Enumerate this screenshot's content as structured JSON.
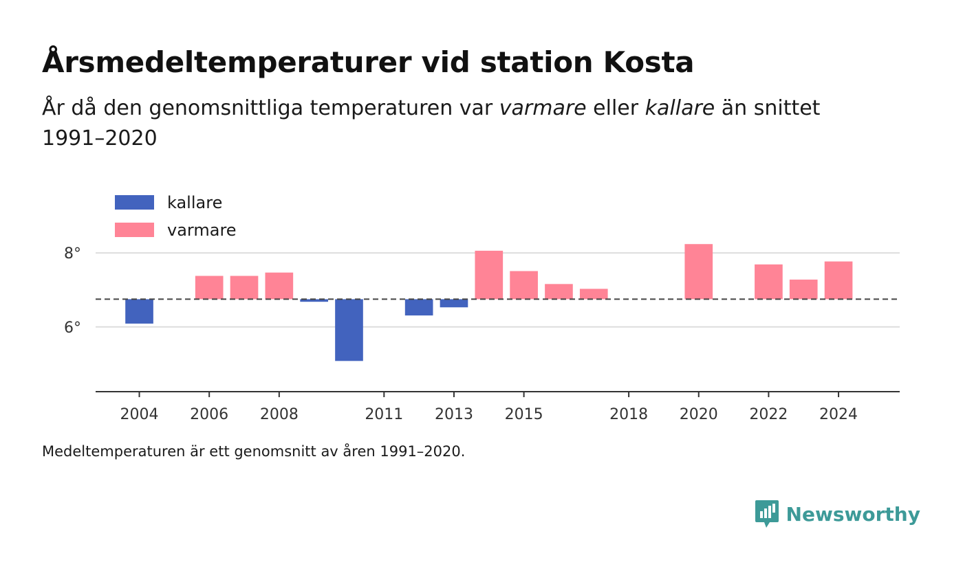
{
  "header": {
    "title": "Årsmedeltemperaturer vid station Kosta",
    "subtitle_part1": "År då den genomsnittliga temperaturen var ",
    "subtitle_em1": "varmare",
    "subtitle_part2": " eller ",
    "subtitle_em2": "kallare",
    "subtitle_part3": " än snittet 1991–2020"
  },
  "footnote": "Medeltemperaturen är ett genomsnitt av åren 1991–2020.",
  "brand": {
    "name": "Newsworthy",
    "icon": "newsworthy-logo-icon",
    "color": "#3d9a98"
  },
  "chart_data": {
    "type": "bar",
    "baseline": 6.75,
    "ylim": [
      4.25,
      9.6
    ],
    "xlim": [
      2002.75,
      2025.75
    ],
    "yticks": [
      {
        "value": 6,
        "label": "6°"
      },
      {
        "value": 8,
        "label": "8°"
      }
    ],
    "xticks": [
      2004,
      2006,
      2008,
      2011,
      2013,
      2015,
      2018,
      2020,
      2022,
      2024
    ],
    "grid": true,
    "legend_position": "top-left",
    "colors": {
      "kallare": "#4263be",
      "varmare": "#ff8496"
    },
    "legend": [
      {
        "key": "kallare",
        "label": "kallare"
      },
      {
        "key": "varmare",
        "label": "varmare"
      }
    ],
    "bars": [
      {
        "year": 2004,
        "value": 6.09
      },
      {
        "year": 2006,
        "value": 7.38
      },
      {
        "year": 2007,
        "value": 7.38
      },
      {
        "year": 2008,
        "value": 7.47
      },
      {
        "year": 2009,
        "value": 6.68
      },
      {
        "year": 2010,
        "value": 5.08
      },
      {
        "year": 2012,
        "value": 6.31
      },
      {
        "year": 2013,
        "value": 6.53
      },
      {
        "year": 2014,
        "value": 8.06
      },
      {
        "year": 2015,
        "value": 7.51
      },
      {
        "year": 2016,
        "value": 7.16
      },
      {
        "year": 2017,
        "value": 7.03
      },
      {
        "year": 2020,
        "value": 8.24
      },
      {
        "year": 2022,
        "value": 7.69
      },
      {
        "year": 2023,
        "value": 7.28
      },
      {
        "year": 2024,
        "value": 7.77
      }
    ]
  }
}
